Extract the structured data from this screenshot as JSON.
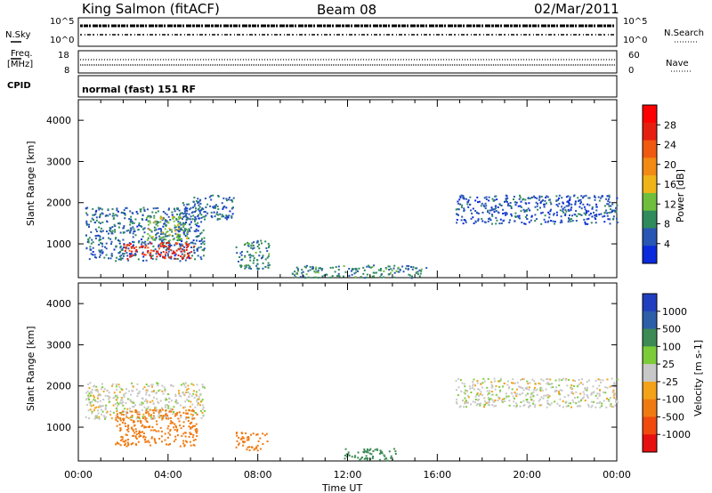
{
  "header": {
    "station": "King Salmon (fitACF)",
    "beam": "Beam 08",
    "date": "02/Mar/2011"
  },
  "top_panels": {
    "nsky_label": "N.Sky",
    "nsky_ticks": [
      "10^5",
      "10^0"
    ],
    "nsearch_label": "N.Search",
    "freq_label_1": "Freq.",
    "freq_label_2": "[MHz]",
    "freq_ticks": [
      "18",
      "8"
    ],
    "nave_label": "Nave",
    "nave_ticks": [
      "60",
      "0"
    ],
    "cpid_label": "CPID",
    "cpid_value": "normal (fast) 151 RF"
  },
  "colors": {
    "power_scale": [
      "#0a2adc",
      "#2856b4",
      "#2f8a5c",
      "#6fbf3c",
      "#f0b419",
      "#f28a14",
      "#f05a10",
      "#e61e10",
      "#ff0000"
    ],
    "velocity_scale": [
      "#1f3fbf",
      "#2d5ea8",
      "#3d8a55",
      "#7ccc3a",
      "#c8c8c8",
      "#f3a21a",
      "#f07a12",
      "#f04a0e",
      "#e61010"
    ]
  },
  "chart_data": [
    {
      "type": "heatmap",
      "name": "power",
      "ylabel": "Slant Range [km]",
      "xlabel": "",
      "ylim": [
        180,
        4500
      ],
      "yticks": [
        "1000",
        "2000",
        "3000",
        "4000"
      ],
      "colorbar_label": "Power [dB]",
      "colorbar_ticks": [
        "4",
        "8",
        "12",
        "16",
        "20",
        "24",
        "28"
      ],
      "regions": [
        {
          "t_start": 0.3,
          "t_end": 5.6,
          "r_low": 600,
          "r_high": 1900,
          "value_db": 6
        },
        {
          "t_start": 2.0,
          "t_end": 5.2,
          "r_low": 650,
          "r_high": 1050,
          "value_db": 26
        },
        {
          "t_start": 3.0,
          "t_end": 4.9,
          "r_low": 1100,
          "r_high": 1700,
          "value_db": 12
        },
        {
          "t_start": 4.5,
          "t_end": 6.9,
          "r_low": 1600,
          "r_high": 2200,
          "value_db": 6
        },
        {
          "t_start": 7.0,
          "t_end": 8.5,
          "r_low": 400,
          "r_high": 1100,
          "value_db": 8
        },
        {
          "t_start": 9.5,
          "t_end": 15.5,
          "r_low": 190,
          "r_high": 500,
          "value_db": 8
        },
        {
          "t_start": 16.8,
          "t_end": 24.0,
          "r_low": 1500,
          "r_high": 2200,
          "value_db": 5
        }
      ]
    },
    {
      "type": "heatmap",
      "name": "velocity",
      "ylabel": "Slant Range [km]",
      "xlabel": "Time UT",
      "xticks": [
        "00:00",
        "04:00",
        "08:00",
        "12:00",
        "16:00",
        "20:00",
        "00:00"
      ],
      "ylim": [
        180,
        4500
      ],
      "yticks": [
        "1000",
        "2000",
        "3000",
        "4000"
      ],
      "colorbar_label": "Velocity [m s-1]",
      "colorbar_ticks": [
        "1000",
        "500",
        "100",
        "25",
        "-25",
        "-100",
        "-500",
        "-1000"
      ],
      "regions": [
        {
          "t_start": 0.3,
          "t_end": 5.6,
          "r_low": 1200,
          "r_high": 2100,
          "value_ms": 0
        },
        {
          "t_start": 1.6,
          "t_end": 5.3,
          "r_low": 550,
          "r_high": 1450,
          "value_ms": -300
        },
        {
          "t_start": 7.0,
          "t_end": 8.4,
          "r_low": 450,
          "r_high": 900,
          "value_ms": -200
        },
        {
          "t_start": 11.8,
          "t_end": 14.2,
          "r_low": 200,
          "r_high": 500,
          "value_ms": 150
        },
        {
          "t_start": 16.8,
          "t_end": 24.0,
          "r_low": 1500,
          "r_high": 2200,
          "value_ms": 0
        }
      ]
    }
  ]
}
